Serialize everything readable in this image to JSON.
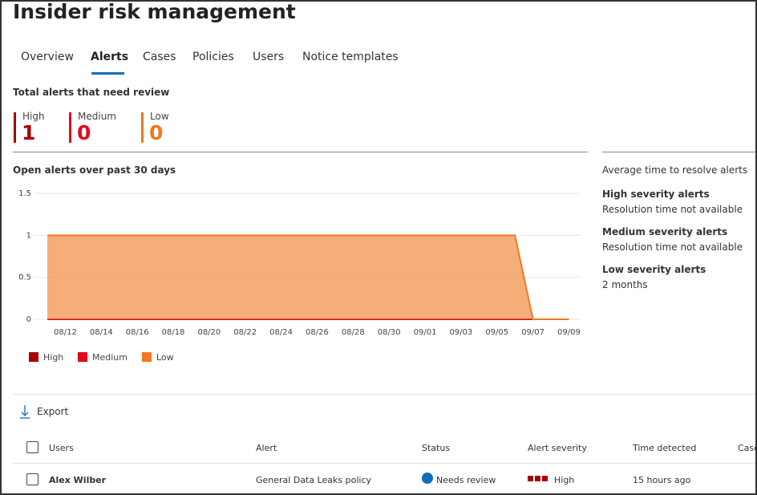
{
  "header": {
    "title": "Insider risk management"
  },
  "tabs": [
    "Overview",
    "Alerts",
    "Cases",
    "Policies",
    "Users",
    "Notice templates"
  ],
  "summary": {
    "title": "Total alerts that need review",
    "counts": [
      {
        "label": "High",
        "count": 1
      },
      {
        "label": "Medium",
        "count": 0
      },
      {
        "label": "Low",
        "count": 0
      }
    ]
  },
  "chart_data": {
    "type": "area",
    "title": "Open alerts over past 30 days",
    "categories": [
      null,
      "08/12",
      null,
      "08/14",
      null,
      "08/16",
      null,
      "08/18",
      null,
      "08/20",
      null,
      "08/22",
      null,
      "08/24",
      null,
      "08/26",
      null,
      "08/28",
      null,
      "08/30",
      null,
      "09/01",
      null,
      "09/03",
      null,
      "09/05",
      null,
      "09/07",
      null,
      "09/09"
    ],
    "series": [
      {
        "name": "High",
        "color": "#a80000",
        "values": [
          0,
          0,
          0,
          0,
          0,
          0,
          0,
          0,
          0,
          0,
          0,
          0,
          0,
          0,
          0,
          0,
          0,
          0,
          0,
          0,
          0,
          0,
          0,
          0,
          0,
          0,
          0,
          0,
          0,
          0
        ]
      },
      {
        "name": "Medium",
        "color": "#e00b1c",
        "values": [
          0,
          0,
          0,
          0,
          0,
          0,
          0,
          0,
          0,
          0,
          0,
          0,
          0,
          0,
          0,
          0,
          0,
          0,
          0,
          0,
          0,
          0,
          0,
          0,
          0,
          0,
          0,
          0,
          0,
          0
        ]
      },
      {
        "name": "Low",
        "color": "#f07820",
        "values": [
          1,
          1,
          1,
          1,
          1,
          1,
          1,
          1,
          1,
          1,
          1,
          1,
          1,
          1,
          1,
          1,
          1,
          1,
          1,
          1,
          1,
          1,
          1,
          1,
          1,
          1,
          1,
          0,
          0,
          0
        ]
      }
    ],
    "ylim": [
      0,
      1.5
    ],
    "yticks": [
      0,
      0.5,
      1,
      1.5
    ],
    "grid": true
  },
  "resolve": {
    "title": "Average time to resolve alerts",
    "items": [
      {
        "label": "High severity alerts",
        "value": "Resolution time not available"
      },
      {
        "label": "Medium severity alerts",
        "value": "Resolution time not available"
      },
      {
        "label": "Low severity alerts",
        "value": "2 months"
      }
    ]
  },
  "toolbar": {
    "export": "Export"
  },
  "table": {
    "columns": [
      "Users",
      "Alert",
      "Status",
      "Alert severity",
      "Time detected",
      "Case"
    ],
    "rows": [
      [
        "Alex Wilber",
        "General Data Leaks policy",
        "Needs review",
        "High",
        "15 hours ago"
      ]
    ]
  }
}
